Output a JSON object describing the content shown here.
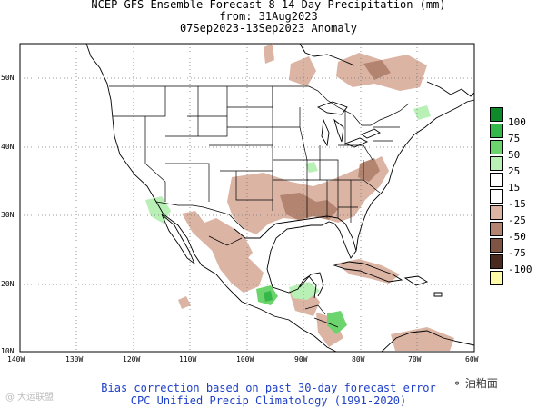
{
  "title": {
    "line1": "NCEP GFS Ensemble Forecast 8-14 Day Precipitation (mm)",
    "line2": "from: 31Aug2023",
    "line3": "07Sep2023-13Sep2023 Anomaly"
  },
  "lat_labels": [
    "50N",
    "40N",
    "30N",
    "20N",
    "10N"
  ],
  "lon_labels": [
    "140W",
    "130W",
    "120W",
    "110W",
    "100W",
    "90W",
    "80W",
    "70W",
    "60W"
  ],
  "legend": {
    "items": [
      {
        "label": "100",
        "color": "#0f8a2a"
      },
      {
        "label": "75",
        "color": "#35b84a"
      },
      {
        "label": "50",
        "color": "#6cd46c"
      },
      {
        "label": "25",
        "color": "#b8f0b6"
      },
      {
        "label": "15",
        "color": "#ffffff"
      },
      {
        "label": "-15",
        "color": "#ffffff"
      },
      {
        "label": "-25",
        "color": "#dbb4a4"
      },
      {
        "label": "-50",
        "color": "#b38470"
      },
      {
        "label": "-75",
        "color": "#7f5444"
      },
      {
        "label": "-100",
        "color": "#4a2a1e"
      },
      {
        "label": "",
        "color": "#fffaa8"
      }
    ]
  },
  "footer": {
    "line1": "Bias correction based on past 30-day forecast error",
    "line2": "CPC Unified Precip Climatology (1991-2020)"
  },
  "watermark": {
    "left": "@ 大运联盟",
    "right": "油粕面"
  }
}
